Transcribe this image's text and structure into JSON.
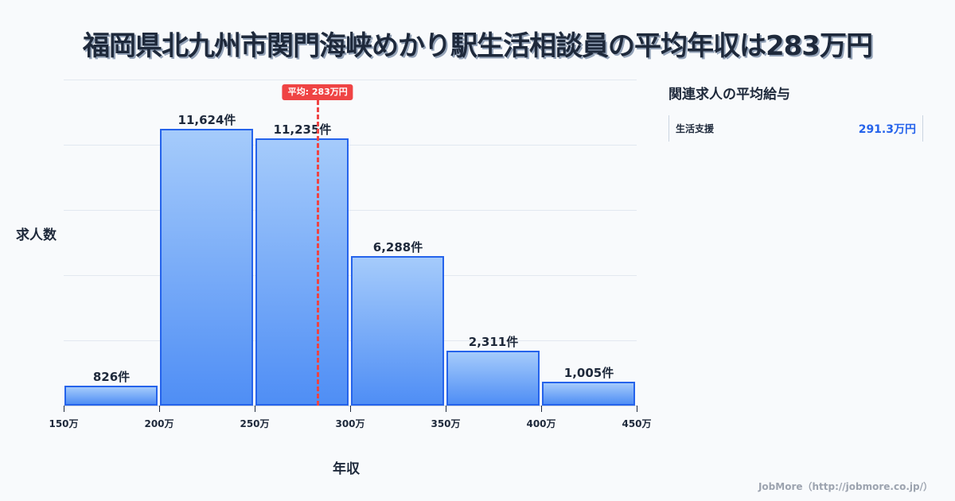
{
  "title": "福岡県北九州市関門海峡めかり駅生活相談員の平均年収は283万円",
  "chart_data": {
    "type": "bar",
    "title": "福岡県北九州市関門海峡めかり駅生活相談員の平均年収は283万円",
    "xlabel": "年収",
    "ylabel": "求人数",
    "x_ticks": [
      "150万",
      "200万",
      "250万",
      "300万",
      "350万",
      "400万",
      "450万"
    ],
    "categories": [
      "150万-200万",
      "200万-250万",
      "250万-300万",
      "300万-350万",
      "350万-400万",
      "400万-450万"
    ],
    "values": [
      826,
      11624,
      11235,
      6288,
      2311,
      1005
    ],
    "value_labels": [
      "826件",
      "11,624件",
      "11,235件",
      "6,288件",
      "2,311件",
      "1,005件"
    ],
    "xlim": [
      150,
      450
    ],
    "grid": true,
    "mean": {
      "value": 283,
      "label": "平均: 283万円",
      "color": "#ef4444"
    },
    "bar_color_top": "#a5cbfb",
    "bar_color_bottom": "#4f8ef5",
    "bar_border_color": "#2563eb"
  },
  "related": {
    "title": "関連求人の平均給与",
    "items": [
      {
        "name": "生活支援",
        "value": "291.3万円"
      }
    ]
  },
  "footer": "JobMore（http://jobmore.co.jp/）"
}
